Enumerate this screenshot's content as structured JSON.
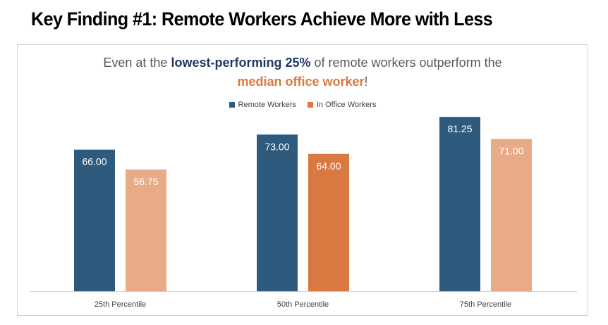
{
  "page_title": "Key Finding #1: Remote Workers Achieve More with Less",
  "subtitle": {
    "part1": "Even at the ",
    "highlight1": "lowest-performing 25%",
    "part2": " of remote workers outperform the",
    "highlight2": "median office worker",
    "part3": "!"
  },
  "colors": {
    "remote": "#2e5b7d",
    "office_light": "#e8ab87",
    "office_dark": "#d97941"
  },
  "chart_data": {
    "type": "bar",
    "categories": [
      "25th Percentile",
      "50th Percentile",
      "75th Percentile"
    ],
    "series": [
      {
        "name": "Remote Workers",
        "values": [
          66.0,
          73.0,
          81.25
        ],
        "labels": [
          "66.00",
          "73.00",
          "81.25"
        ]
      },
      {
        "name": "In Office Workers",
        "values": [
          56.75,
          64.0,
          71.0
        ],
        "labels": [
          "56.75",
          "64.00",
          "71.00"
        ]
      }
    ],
    "title": "Even at the lowest-performing 25% of remote workers outperform the median office worker!",
    "xlabel": "",
    "ylabel": "",
    "ylim": [
      0,
      100
    ],
    "legend": "top-center",
    "grid": false,
    "data_labels": true
  }
}
